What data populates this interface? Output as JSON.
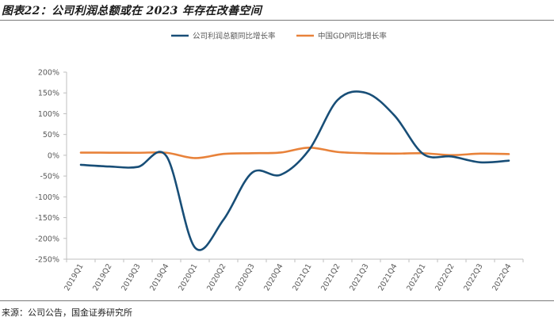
{
  "figure": {
    "title": "图表22：公司利润总额或在 2023 年存在改善空间",
    "source": "来源：公司公告，国金证券研究所"
  },
  "colors": {
    "series_0": "#184E77",
    "series_1": "#E8823A",
    "axis": "#BFBFBF",
    "text": "#595959"
  },
  "chart_data": {
    "type": "line",
    "title": "",
    "xlabel": "",
    "ylabel": "",
    "ylim": [
      -250,
      200
    ],
    "yticks": [
      -250,
      -200,
      -150,
      -100,
      -50,
      0,
      50,
      100,
      150,
      200
    ],
    "ytick_labels": [
      "-250%",
      "-200%",
      "-150%",
      "-100%",
      "-50%",
      "0%",
      "50%",
      "100%",
      "150%",
      "200%"
    ],
    "grid": false,
    "legend_position": "top-center",
    "categories": [
      "2019Q1",
      "2019Q2",
      "2019Q3",
      "2019Q4",
      "2020Q1",
      "2020Q2",
      "2020Q3",
      "2020Q4",
      "2021Q1",
      "2021Q2",
      "2021Q3",
      "2021Q4",
      "2022Q1",
      "2022Q2",
      "2022Q3",
      "2022Q4"
    ],
    "series": [
      {
        "name": "公司利润总额同比增长率",
        "values": [
          -23,
          -27,
          -28,
          -2,
          -222,
          -155,
          -42,
          -47,
          13,
          133,
          150,
          95,
          3,
          -3,
          -17,
          -13
        ]
      },
      {
        "name": "中国GDP同比增长率",
        "values": [
          6.4,
          6.2,
          6.0,
          6.0,
          -6.8,
          3.2,
          4.9,
          6.5,
          18.3,
          7.9,
          4.9,
          4.0,
          4.8,
          0.4,
          3.9,
          2.9
        ]
      }
    ]
  }
}
